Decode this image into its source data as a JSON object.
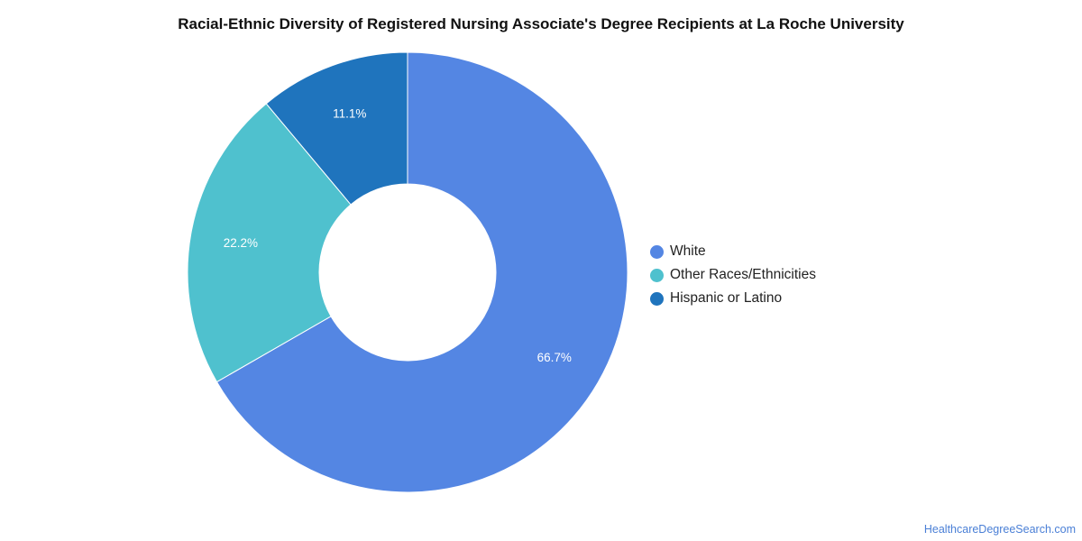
{
  "title": "Racial-Ethnic Diversity of Registered Nursing Associate's Degree Recipients at La Roche University",
  "credit": "HealthcareDegreeSearch.com",
  "chart_data": {
    "type": "pie",
    "style": "donut",
    "title": "Racial-Ethnic Diversity of Registered Nursing Associate's Degree Recipients at La Roche University",
    "legend_position": "right",
    "slices": [
      {
        "label": "White",
        "value": 66.7,
        "display": "66.7%",
        "color": "#5486E3"
      },
      {
        "label": "Other Races/Ethnicities",
        "value": 22.2,
        "display": "22.2%",
        "color": "#4FC1CE"
      },
      {
        "label": "Hispanic or Latino",
        "value": 11.1,
        "display": "11.1%",
        "color": "#1F74BD"
      }
    ]
  }
}
